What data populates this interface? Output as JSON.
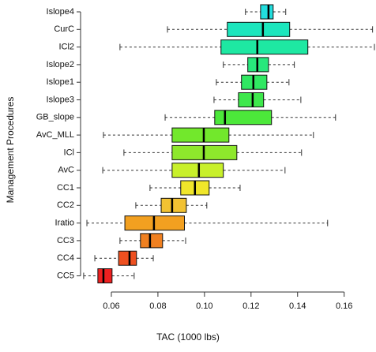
{
  "chart_data": {
    "type": "boxplot",
    "x_label": "TAC (1000 lbs)",
    "y_label": "Management Procedures",
    "categories": [
      "Islope4",
      "CurC",
      "ICl2",
      "Islope2",
      "Islope1",
      "Islope3",
      "GB_slope",
      "AvC_MLL",
      "ICl",
      "AvC",
      "CC1",
      "CC2",
      "Iratio",
      "CC3",
      "CC4",
      "CC5"
    ],
    "whisker_low": [
      0.1176,
      0.0841,
      0.0637,
      0.1081,
      0.1051,
      0.1041,
      0.0831,
      0.0566,
      0.0654,
      0.0563,
      0.0766,
      0.0705,
      0.0495,
      0.0637,
      0.0529,
      0.0481
    ],
    "q1": [
      0.1241,
      0.1098,
      0.1071,
      0.1186,
      0.1159,
      0.1146,
      0.1044,
      0.0861,
      0.0861,
      0.0861,
      0.0898,
      0.0814,
      0.0658,
      0.0725,
      0.0631,
      0.0542
    ],
    "median": [
      0.1275,
      0.1251,
      0.1227,
      0.1227,
      0.121,
      0.1207,
      0.1088,
      0.0997,
      0.0997,
      0.0976,
      0.0959,
      0.0861,
      0.0783,
      0.0766,
      0.0678,
      0.0566
    ],
    "q3": [
      0.1295,
      0.1366,
      0.1444,
      0.1275,
      0.1268,
      0.1254,
      0.1288,
      0.1105,
      0.1139,
      0.1081,
      0.102,
      0.0922,
      0.0914,
      0.082,
      0.0708,
      0.0603
    ],
    "whisker_high": [
      0.1349,
      0.1722,
      0.173,
      0.1386,
      0.1363,
      0.1414,
      0.1563,
      0.1468,
      0.1417,
      0.1346,
      0.1153,
      0.101,
      0.1529,
      0.0919,
      0.078,
      0.0698
    ],
    "colors": [
      "#22dede",
      "#1ce6bd",
      "#1ee8a2",
      "#28e87c",
      "#30e862",
      "#3ee84c",
      "#4ce83a",
      "#72e82c",
      "#8ee82c",
      "#c8f02a",
      "#f0e62a",
      "#f2c232",
      "#f2a020",
      "#f08020",
      "#ee5020",
      "#ee2020"
    ],
    "xlim": [
      0.048,
      0.173
    ],
    "xticks": [
      0.06,
      0.08,
      {
        "value": 0.1,
        "label": "0.10"
      },
      0.12,
      0.14,
      0.16
    ]
  }
}
